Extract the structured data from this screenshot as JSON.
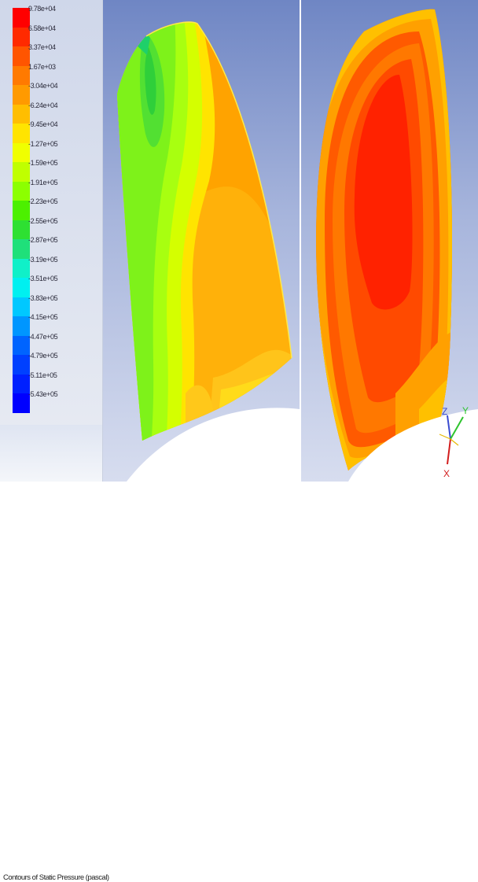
{
  "legend": {
    "entries": [
      {
        "label": "9.78e+04",
        "color": "#ff0000"
      },
      {
        "label": "6.58e+04",
        "color": "#ff2a00"
      },
      {
        "label": "3.37e+04",
        "color": "#ff5500"
      },
      {
        "label": "1.67e+03",
        "color": "#ff7a00"
      },
      {
        "label": "-3.04e+04",
        "color": "#ff9a00"
      },
      {
        "label": "-6.24e+04",
        "color": "#ffbe00"
      },
      {
        "label": "-9.45e+04",
        "color": "#ffe400"
      },
      {
        "label": "-1.27e+05",
        "color": "#f0ff00"
      },
      {
        "label": "-1.59e+05",
        "color": "#c0ff00"
      },
      {
        "label": "-1.91e+05",
        "color": "#8cff00"
      },
      {
        "label": "-2.23e+05",
        "color": "#4cf000"
      },
      {
        "label": "-2.55e+05",
        "color": "#2ee032"
      },
      {
        "label": "-2.87e+05",
        "color": "#1fe07a"
      },
      {
        "label": "-3.19e+05",
        "color": "#10f0c8"
      },
      {
        "label": "-3.51e+05",
        "color": "#00f0f0"
      },
      {
        "label": "-3.83e+05",
        "color": "#00c8ff"
      },
      {
        "label": "-4.15e+05",
        "color": "#0096ff"
      },
      {
        "label": "-4.47e+05",
        "color": "#0064ff"
      },
      {
        "label": "-4.79e+05",
        "color": "#0040ff"
      },
      {
        "label": "-5.11e+05",
        "color": "#0020ff"
      },
      {
        "label": "-5.43e+05",
        "color": "#0000ff"
      }
    ]
  },
  "caption": "Contours of Static Pressure (pascal)",
  "axes_triad": {
    "labels": [
      "Z",
      "Y",
      "X"
    ],
    "colors": [
      "#3a4bd0",
      "#2ec42e",
      "#d21c1c"
    ]
  }
}
